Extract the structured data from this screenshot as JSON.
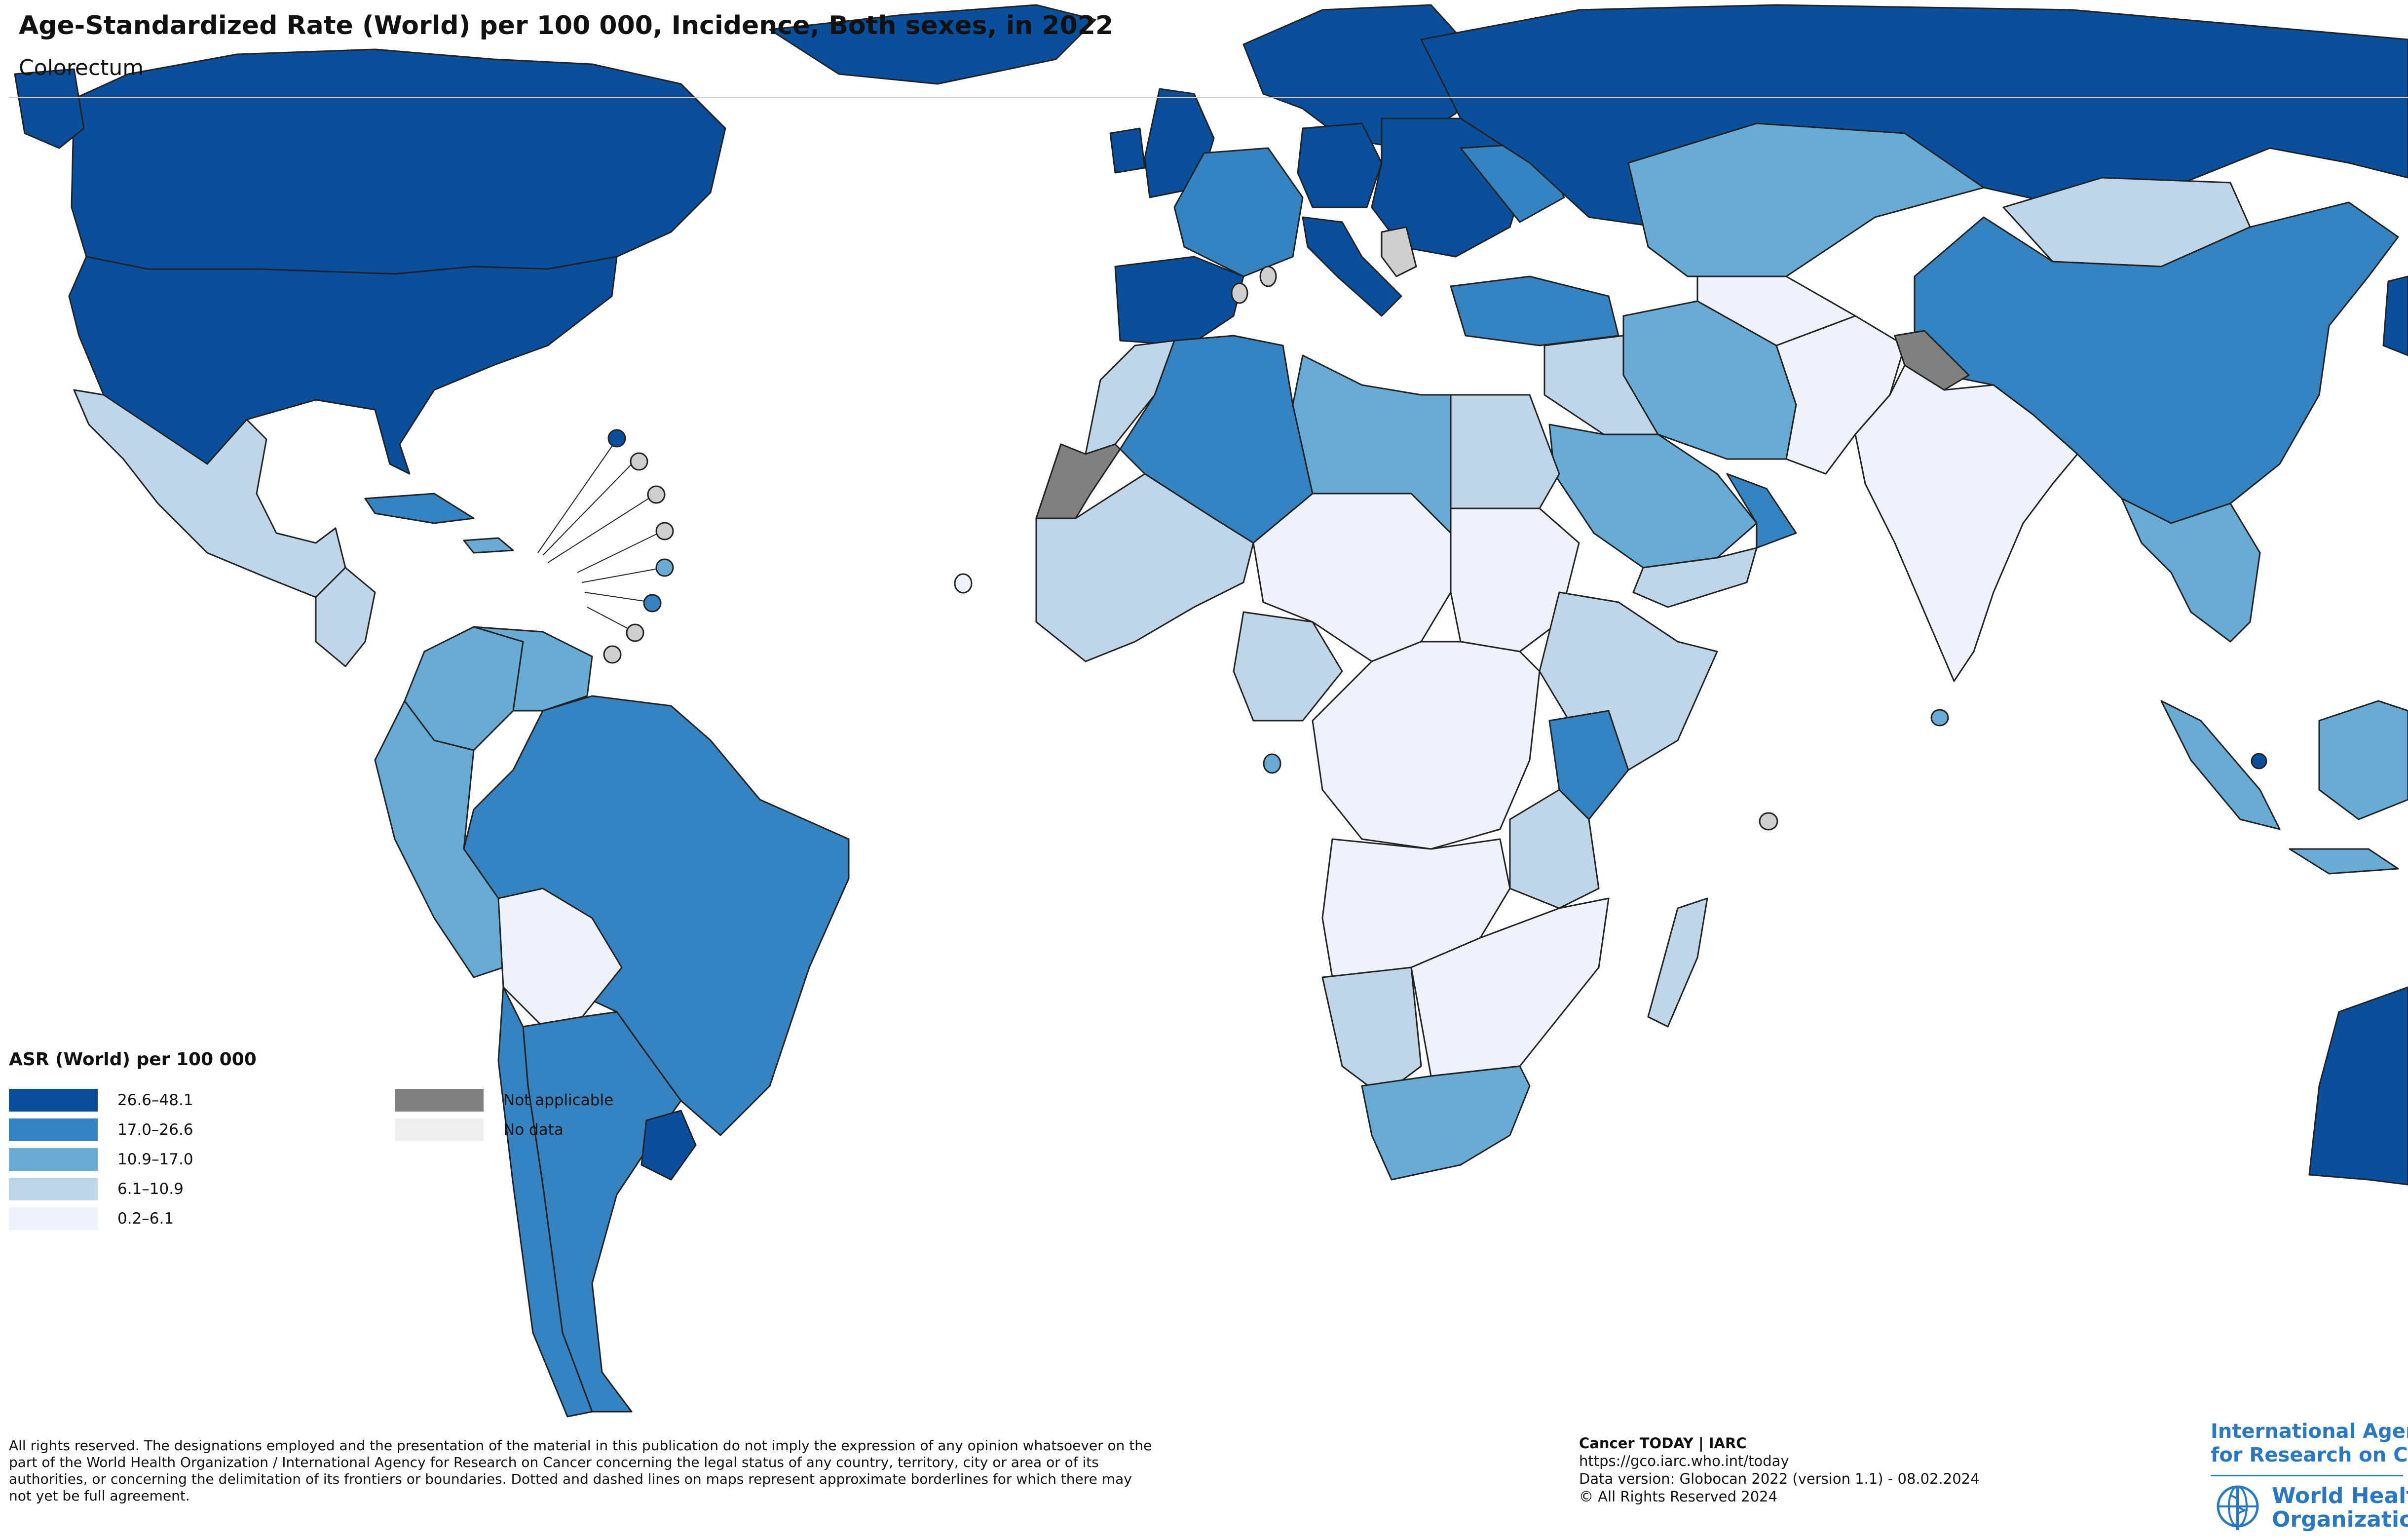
{
  "header": {
    "title": "Age-Standardized Rate (World) per 100 000, Incidence, Both sexes, in 2022",
    "subtitle": "Colorectum"
  },
  "legend": {
    "title": "ASR (World) per 100 000",
    "classes": [
      {
        "label": "26.6–48.1",
        "color": "#0a4f9c"
      },
      {
        "label": "17.0–26.6",
        "color": "#3583c0"
      },
      {
        "label": "10.9–17.0",
        "color": "#68abd5"
      },
      {
        "label": "6.1–10.9",
        "color": "#bed6e8"
      },
      {
        "label": "0.2–6.1",
        "color": "#eef2fb"
      }
    ],
    "special": [
      {
        "label": "Not applicable",
        "color": "#808080"
      },
      {
        "label": "No data",
        "color": "#eeeeee"
      }
    ]
  },
  "footer": {
    "disclaimer": "All rights reserved. The designations employed and the presentation of the material in this publication do not imply the expression of any opinion whatsoever on the part of the World Health Organization / International Agency for Research on Cancer concerning the legal status of any country, territory, city or area or of its authorities, or concerning the delimitation of its frontiers or boundaries. Dotted and dashed lines on maps represent approximate borderlines for which there may not yet be full agreement.",
    "source_title": "Cancer TODAY | IARC",
    "source_url": "https://gco.iarc.who.int/today",
    "data_version": "Data version: Globocan 2022 (version 1.1) - 08.02.2024",
    "copyright": "© All Rights Reserved 2024"
  },
  "logos": {
    "iarc_line1": "International Agency",
    "iarc_line2": "for Research on Cancer",
    "who_line1": "World Health",
    "who_line2": "Organization"
  }
}
